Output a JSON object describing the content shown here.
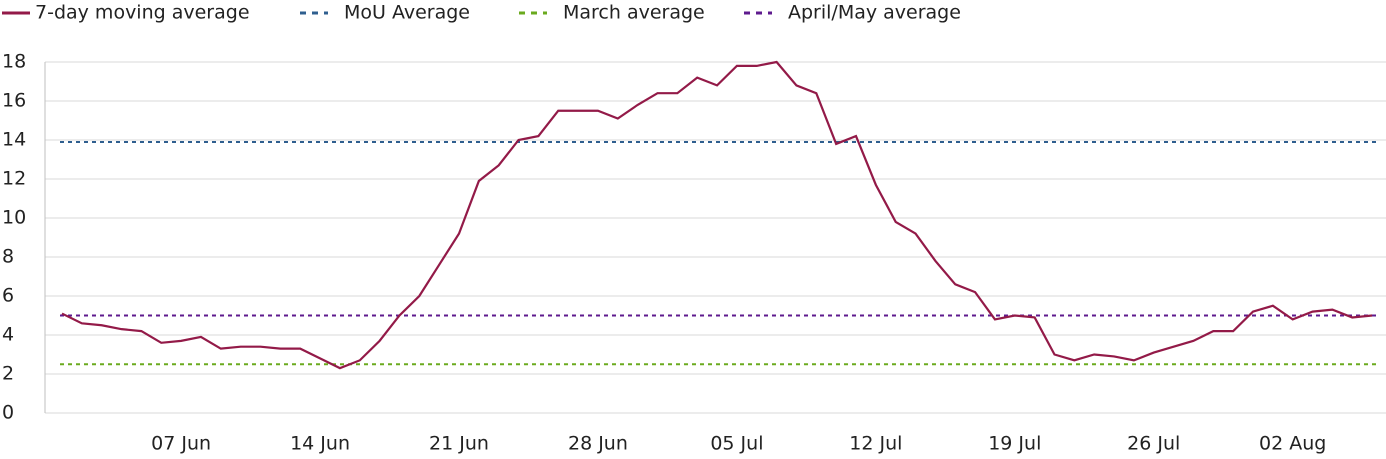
{
  "chart_data": {
    "type": "line",
    "categories": [
      null,
      null,
      null,
      null,
      null,
      null,
      "07 Jun",
      null,
      null,
      null,
      null,
      null,
      null,
      "14 Jun",
      null,
      null,
      null,
      null,
      null,
      null,
      "21 Jun",
      null,
      null,
      null,
      null,
      null,
      null,
      "28 Jun",
      null,
      null,
      null,
      null,
      null,
      null,
      "05 Jul",
      null,
      null,
      null,
      null,
      null,
      null,
      "12 Jul",
      null,
      null,
      null,
      null,
      null,
      null,
      "19 Jul",
      null,
      null,
      null,
      null,
      null,
      null,
      "26 Jul",
      null,
      null,
      null,
      null,
      null,
      null,
      "02 Aug",
      null,
      null,
      null,
      null
    ],
    "series": [
      {
        "name": "7-day moving average",
        "color": "#931a48",
        "values": [
          5.1,
          4.6,
          4.5,
          4.3,
          4.2,
          3.6,
          3.7,
          3.9,
          3.3,
          3.4,
          3.4,
          3.3,
          3.3,
          2.8,
          2.3,
          2.7,
          3.7,
          5.0,
          6.0,
          7.6,
          9.2,
          11.9,
          12.7,
          14.0,
          14.2,
          15.5,
          15.5,
          15.5,
          15.1,
          15.8,
          16.4,
          16.4,
          17.2,
          16.8,
          17.8,
          17.8,
          18.0,
          16.8,
          16.4,
          13.8,
          14.2,
          11.7,
          9.8,
          9.2,
          7.8,
          6.6,
          6.2,
          4.8,
          5.0,
          4.9,
          3.0,
          2.7,
          3.0,
          2.9,
          2.7,
          3.1,
          3.4,
          3.7,
          4.2,
          4.2,
          5.2,
          5.5,
          4.8,
          5.2,
          5.3,
          4.9,
          5.0
        ]
      }
    ],
    "reference_lines": [
      {
        "name": "MoU Average",
        "color": "#2f5f8f",
        "value": 13.9
      },
      {
        "name": "March average",
        "color": "#6aaa1e",
        "value": 2.5
      },
      {
        "name": "April/May average",
        "color": "#5e1a8e",
        "value": 5.0
      }
    ],
    "ylim": [
      0,
      18
    ],
    "yticks": [
      0,
      2,
      4,
      6,
      8,
      10,
      12,
      14,
      16,
      18
    ],
    "grid": true
  }
}
